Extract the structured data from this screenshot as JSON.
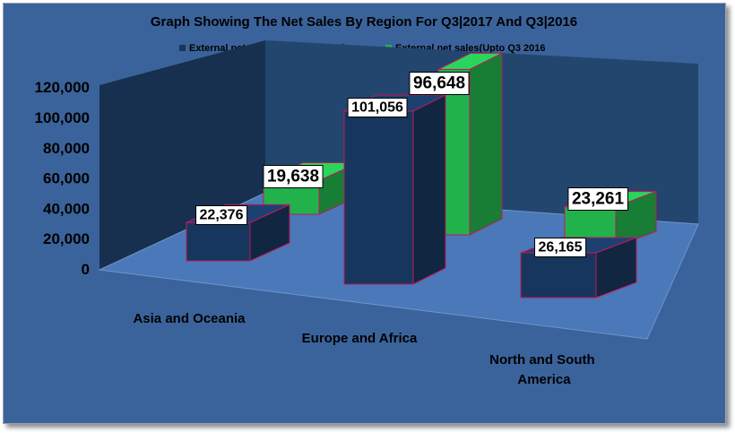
{
  "chart_data": {
    "type": "bar",
    "style": "3d-column",
    "title": "Graph Showing The Net Sales By Region For Q3|2017 And Q3|2016",
    "categories": [
      "Asia and Oceania",
      "Europe and Africa",
      "North and South America"
    ],
    "series": [
      {
        "name": "External net sales (Upto Q3 2017)",
        "values": [
          22376,
          101056,
          26165
        ],
        "color": "#17365d"
      },
      {
        "name": "External net sales(Upto Q3 2016",
        "values": [
          19638,
          96648,
          23261
        ],
        "color": "#22b24c"
      }
    ],
    "data_labels": [
      [
        "22,376",
        "101,056",
        "26,165"
      ],
      [
        "19,638",
        "96,648",
        "23,261"
      ]
    ],
    "y_ticks": [
      "0",
      "20,000",
      "40,000",
      "60,000",
      "80,000",
      "100,000",
      "120,000"
    ],
    "ylim": [
      0,
      120000
    ],
    "legend_position": "top",
    "xlabel": "",
    "ylabel": "",
    "colors": {
      "background": "#3b639b",
      "back_wall": "#23466f",
      "side_wall": "#17304f",
      "floor": "#4a78b8",
      "bar_edge": "#c0185a"
    }
  }
}
